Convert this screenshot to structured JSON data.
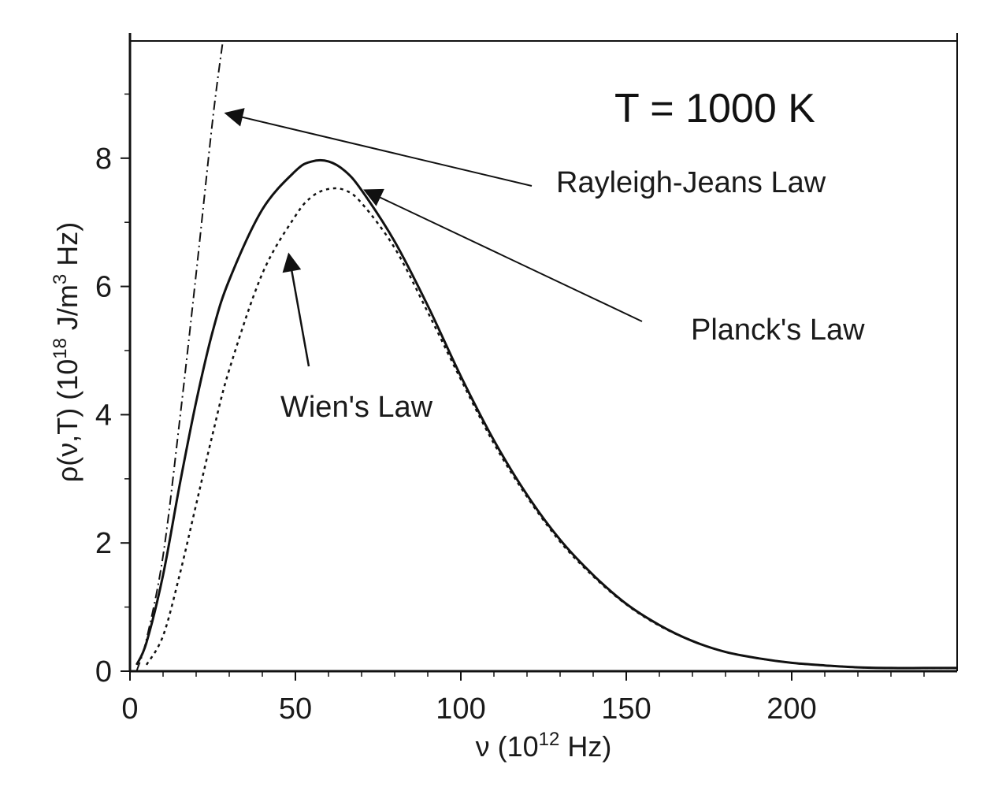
{
  "chart_data": {
    "type": "line",
    "title": "",
    "annotation_title": "T = 1000 K",
    "xlabel": {
      "pre": "ν (10",
      "sup": "12",
      "post": " Hz)"
    },
    "ylabel": {
      "pre": "ρ(ν,T)  (10",
      "sup1": "18",
      "mid": " J/m",
      "sup2": "3",
      "post": " Hz)"
    },
    "xlim": [
      0,
      250
    ],
    "ylim": [
      0,
      9.8
    ],
    "x_ticks": [
      0,
      50,
      100,
      150,
      200
    ],
    "y_ticks": [
      0,
      2,
      4,
      6,
      8
    ],
    "x_tick_labels": [
      "0",
      "50",
      "100",
      "150",
      "200"
    ],
    "y_tick_labels": [
      "0",
      "2",
      "4",
      "6",
      "8"
    ],
    "grid": false,
    "series": [
      {
        "name": "Planck's Law",
        "style": "solid",
        "x": [
          2,
          5,
          10,
          15,
          20,
          25,
          30,
          40,
          50,
          55,
          60,
          65,
          70,
          80,
          90,
          100,
          110,
          120,
          130,
          140,
          150,
          160,
          170,
          180,
          190,
          200,
          210,
          220,
          230,
          240,
          250
        ],
        "y": [
          0.1,
          0.45,
          1.5,
          2.9,
          4.2,
          5.3,
          6.1,
          7.2,
          7.8,
          7.95,
          7.95,
          7.8,
          7.5,
          6.7,
          5.7,
          4.6,
          3.6,
          2.75,
          2.05,
          1.5,
          1.05,
          0.72,
          0.47,
          0.3,
          0.2,
          0.13,
          0.09,
          0.06,
          0.05,
          0.05,
          0.05
        ]
      },
      {
        "name": "Wien's Law",
        "style": "dotted",
        "x": [
          5,
          10,
          15,
          20,
          25,
          30,
          40,
          50,
          55,
          60,
          65,
          70,
          80,
          90,
          100,
          110,
          120,
          130,
          140,
          150,
          160,
          170,
          180,
          190,
          200,
          210,
          220,
          230,
          240,
          250
        ],
        "y": [
          0.1,
          0.55,
          1.5,
          2.6,
          3.7,
          4.7,
          6.2,
          7.1,
          7.4,
          7.52,
          7.5,
          7.3,
          6.6,
          5.6,
          4.55,
          3.55,
          2.72,
          2.02,
          1.48,
          1.04,
          0.71,
          0.47,
          0.3,
          0.2,
          0.13,
          0.09,
          0.06,
          0.05,
          0.05,
          0.05
        ]
      },
      {
        "name": "Rayleigh-Jeans Law",
        "style": "dashdot",
        "x": [
          2,
          5,
          10,
          15,
          20,
          25,
          28
        ],
        "y": [
          0.0,
          0.5,
          1.8,
          3.9,
          6.2,
          8.6,
          9.8
        ]
      }
    ],
    "annotations": [
      {
        "text": "Rayleigh-Jeans Law",
        "arrow_to": {
          "x": 29,
          "y": 8.7
        }
      },
      {
        "text": "Planck's Law",
        "arrow_to": {
          "x": 71,
          "y": 7.5
        }
      },
      {
        "text": "Wien's Law",
        "arrow_to": {
          "x": 48,
          "y": 6.5
        }
      }
    ]
  }
}
